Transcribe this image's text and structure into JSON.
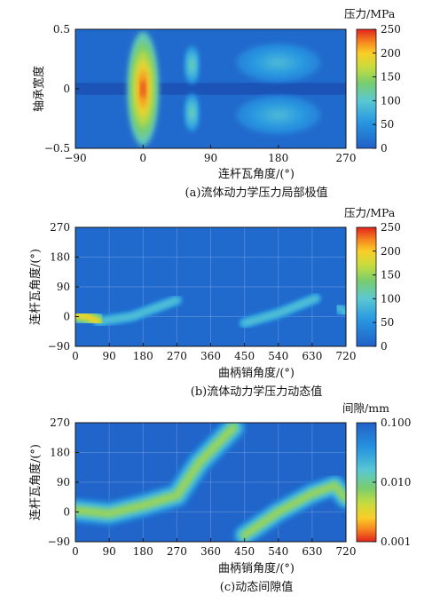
{
  "colors": {
    "background": "#2a6fc4",
    "axis": "#111111"
  },
  "chart_data": [
    {
      "type": "heatmap",
      "caption": "(a)流体动力学压力局部极值",
      "xlabel": "连杆瓦角度/(°)",
      "ylabel": "轴承宽度",
      "xlim": [
        -90,
        270
      ],
      "ylim": [
        -0.5,
        0.5
      ],
      "xticks": [
        "−90",
        "0",
        "90",
        "180",
        "270"
      ],
      "yticks": [
        "0.5",
        "0",
        "−0.5"
      ],
      "colorbar": {
        "title": "压力/MPa",
        "range": [
          0,
          250
        ],
        "ticks": [
          "250",
          "200",
          "150",
          "100",
          "50",
          "0"
        ],
        "scale": "linear"
      },
      "features": [
        {
          "x": 0,
          "y": 0,
          "sx": 13,
          "sy": 0.3,
          "value": 240
        },
        {
          "x": 65,
          "y": 0.2,
          "sx": 6,
          "sy": 0.1,
          "value": 120
        },
        {
          "x": 65,
          "y": -0.2,
          "sx": 6,
          "sy": 0.1,
          "value": 120
        },
        {
          "x": 180,
          "y": 0.22,
          "sx": 35,
          "sy": 0.1,
          "value": 85
        },
        {
          "x": 180,
          "y": -0.22,
          "sx": 35,
          "sy": 0.1,
          "value": 85
        }
      ]
    },
    {
      "type": "heatmap",
      "caption": "(b)流体动力学压力动态值",
      "xlabel": "曲柄销角度/(°)",
      "ylabel": "连杆瓦角度/(°)",
      "xlim": [
        0,
        720
      ],
      "ylim": [
        -90,
        270
      ],
      "xticks": [
        "0",
        "90",
        "180",
        "270",
        "360",
        "450",
        "540",
        "630",
        "720"
      ],
      "yticks": [
        "270",
        "180",
        "90",
        "0",
        "−90"
      ],
      "colorbar": {
        "title": "压力/MPa",
        "range": [
          0,
          250
        ],
        "ticks": [
          "250",
          "200",
          "150",
          "100",
          "50",
          "0"
        ],
        "scale": "linear"
      },
      "ridges": [
        {
          "points": [
            [
              60,
              -15
            ],
            [
              150,
              0
            ],
            [
              270,
              50
            ]
          ],
          "width": 9,
          "value": 100
        },
        {
          "points": [
            [
              450,
              -20
            ],
            [
              540,
              10
            ],
            [
              640,
              55
            ]
          ],
          "width": 9,
          "value": 100
        },
        {
          "points": [
            [
              0,
              5
            ],
            [
              30,
              0
            ],
            [
              60,
              -15
            ]
          ],
          "width": 14,
          "value": 200
        },
        {
          "points": [
            [
              700,
              30
            ],
            [
              720,
              10
            ]
          ],
          "width": 12,
          "value": 90
        }
      ]
    },
    {
      "type": "heatmap",
      "caption": "(c)动态间隙值",
      "xlabel": "曲柄销角度/(°)",
      "ylabel": "连杆瓦角度/(°)",
      "xlim": [
        0,
        720
      ],
      "ylim": [
        -90,
        270
      ],
      "xticks": [
        "0",
        "90",
        "180",
        "270",
        "360",
        "450",
        "540",
        "630",
        "720"
      ],
      "yticks": [
        "270",
        "180",
        "90",
        "0",
        "−90"
      ],
      "colorbar": {
        "title": "间隙/mm",
        "range": [
          0.001,
          0.1
        ],
        "ticks": [
          "0.100",
          "0.010",
          "0.001"
        ],
        "scale": "log"
      },
      "ridges": [
        {
          "points": [
            [
              0,
              5
            ],
            [
              90,
              -5
            ],
            [
              180,
              20
            ],
            [
              270,
              50
            ],
            [
              330,
              150
            ],
            [
              420,
              255
            ]
          ],
          "width": 22,
          "value": 0.006
        },
        {
          "points": [
            [
              450,
              -70
            ],
            [
              540,
              0
            ],
            [
              630,
              55
            ],
            [
              690,
              80
            ],
            [
              720,
              40
            ]
          ],
          "width": 20,
          "value": 0.006
        }
      ]
    }
  ]
}
